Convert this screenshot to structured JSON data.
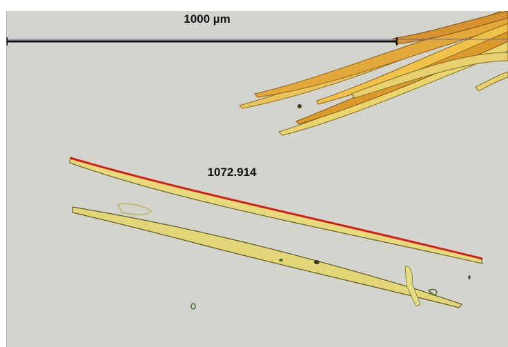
{
  "scale_bar": {
    "label": "1000 µm",
    "color": "#111111"
  },
  "measurement": {
    "value": "1072.914",
    "line_color": "#d21e14"
  },
  "colors": {
    "background": "#d4d4cf",
    "fiber_fill": "#e6da7c",
    "fiber_edge": "#6a6228",
    "fiber_bundle": "#d79a2a"
  }
}
